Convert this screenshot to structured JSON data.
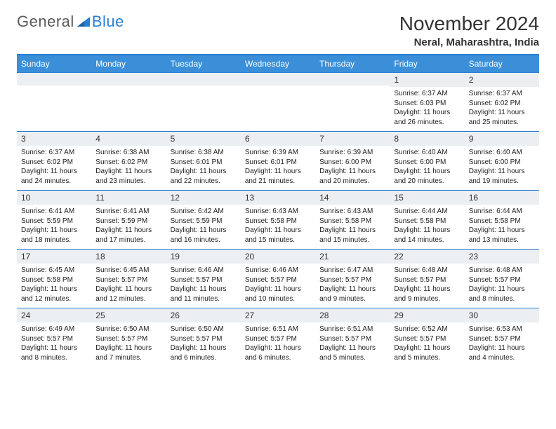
{
  "logo": {
    "general": "General",
    "blue": "Blue"
  },
  "title": "November 2024",
  "location": "Neral, Maharashtra, India",
  "colors": {
    "header_bg": "#3a8fd8",
    "border": "#2a7fd4",
    "daynum_bg": "#eceff1",
    "logo_gray": "#5a5a5a",
    "logo_blue": "#2a7fd4"
  },
  "days_of_week": [
    "Sunday",
    "Monday",
    "Tuesday",
    "Wednesday",
    "Thursday",
    "Friday",
    "Saturday"
  ],
  "weeks": [
    [
      {
        "n": "",
        "sr": "",
        "ss": "",
        "dl": ""
      },
      {
        "n": "",
        "sr": "",
        "ss": "",
        "dl": ""
      },
      {
        "n": "",
        "sr": "",
        "ss": "",
        "dl": ""
      },
      {
        "n": "",
        "sr": "",
        "ss": "",
        "dl": ""
      },
      {
        "n": "",
        "sr": "",
        "ss": "",
        "dl": ""
      },
      {
        "n": "1",
        "sr": "Sunrise: 6:37 AM",
        "ss": "Sunset: 6:03 PM",
        "dl": "Daylight: 11 hours and 26 minutes."
      },
      {
        "n": "2",
        "sr": "Sunrise: 6:37 AM",
        "ss": "Sunset: 6:02 PM",
        "dl": "Daylight: 11 hours and 25 minutes."
      }
    ],
    [
      {
        "n": "3",
        "sr": "Sunrise: 6:37 AM",
        "ss": "Sunset: 6:02 PM",
        "dl": "Daylight: 11 hours and 24 minutes."
      },
      {
        "n": "4",
        "sr": "Sunrise: 6:38 AM",
        "ss": "Sunset: 6:02 PM",
        "dl": "Daylight: 11 hours and 23 minutes."
      },
      {
        "n": "5",
        "sr": "Sunrise: 6:38 AM",
        "ss": "Sunset: 6:01 PM",
        "dl": "Daylight: 11 hours and 22 minutes."
      },
      {
        "n": "6",
        "sr": "Sunrise: 6:39 AM",
        "ss": "Sunset: 6:01 PM",
        "dl": "Daylight: 11 hours and 21 minutes."
      },
      {
        "n": "7",
        "sr": "Sunrise: 6:39 AM",
        "ss": "Sunset: 6:00 PM",
        "dl": "Daylight: 11 hours and 20 minutes."
      },
      {
        "n": "8",
        "sr": "Sunrise: 6:40 AM",
        "ss": "Sunset: 6:00 PM",
        "dl": "Daylight: 11 hours and 20 minutes."
      },
      {
        "n": "9",
        "sr": "Sunrise: 6:40 AM",
        "ss": "Sunset: 6:00 PM",
        "dl": "Daylight: 11 hours and 19 minutes."
      }
    ],
    [
      {
        "n": "10",
        "sr": "Sunrise: 6:41 AM",
        "ss": "Sunset: 5:59 PM",
        "dl": "Daylight: 11 hours and 18 minutes."
      },
      {
        "n": "11",
        "sr": "Sunrise: 6:41 AM",
        "ss": "Sunset: 5:59 PM",
        "dl": "Daylight: 11 hours and 17 minutes."
      },
      {
        "n": "12",
        "sr": "Sunrise: 6:42 AM",
        "ss": "Sunset: 5:59 PM",
        "dl": "Daylight: 11 hours and 16 minutes."
      },
      {
        "n": "13",
        "sr": "Sunrise: 6:43 AM",
        "ss": "Sunset: 5:58 PM",
        "dl": "Daylight: 11 hours and 15 minutes."
      },
      {
        "n": "14",
        "sr": "Sunrise: 6:43 AM",
        "ss": "Sunset: 5:58 PM",
        "dl": "Daylight: 11 hours and 15 minutes."
      },
      {
        "n": "15",
        "sr": "Sunrise: 6:44 AM",
        "ss": "Sunset: 5:58 PM",
        "dl": "Daylight: 11 hours and 14 minutes."
      },
      {
        "n": "16",
        "sr": "Sunrise: 6:44 AM",
        "ss": "Sunset: 5:58 PM",
        "dl": "Daylight: 11 hours and 13 minutes."
      }
    ],
    [
      {
        "n": "17",
        "sr": "Sunrise: 6:45 AM",
        "ss": "Sunset: 5:58 PM",
        "dl": "Daylight: 11 hours and 12 minutes."
      },
      {
        "n": "18",
        "sr": "Sunrise: 6:45 AM",
        "ss": "Sunset: 5:57 PM",
        "dl": "Daylight: 11 hours and 12 minutes."
      },
      {
        "n": "19",
        "sr": "Sunrise: 6:46 AM",
        "ss": "Sunset: 5:57 PM",
        "dl": "Daylight: 11 hours and 11 minutes."
      },
      {
        "n": "20",
        "sr": "Sunrise: 6:46 AM",
        "ss": "Sunset: 5:57 PM",
        "dl": "Daylight: 11 hours and 10 minutes."
      },
      {
        "n": "21",
        "sr": "Sunrise: 6:47 AM",
        "ss": "Sunset: 5:57 PM",
        "dl": "Daylight: 11 hours and 9 minutes."
      },
      {
        "n": "22",
        "sr": "Sunrise: 6:48 AM",
        "ss": "Sunset: 5:57 PM",
        "dl": "Daylight: 11 hours and 9 minutes."
      },
      {
        "n": "23",
        "sr": "Sunrise: 6:48 AM",
        "ss": "Sunset: 5:57 PM",
        "dl": "Daylight: 11 hours and 8 minutes."
      }
    ],
    [
      {
        "n": "24",
        "sr": "Sunrise: 6:49 AM",
        "ss": "Sunset: 5:57 PM",
        "dl": "Daylight: 11 hours and 8 minutes."
      },
      {
        "n": "25",
        "sr": "Sunrise: 6:50 AM",
        "ss": "Sunset: 5:57 PM",
        "dl": "Daylight: 11 hours and 7 minutes."
      },
      {
        "n": "26",
        "sr": "Sunrise: 6:50 AM",
        "ss": "Sunset: 5:57 PM",
        "dl": "Daylight: 11 hours and 6 minutes."
      },
      {
        "n": "27",
        "sr": "Sunrise: 6:51 AM",
        "ss": "Sunset: 5:57 PM",
        "dl": "Daylight: 11 hours and 6 minutes."
      },
      {
        "n": "28",
        "sr": "Sunrise: 6:51 AM",
        "ss": "Sunset: 5:57 PM",
        "dl": "Daylight: 11 hours and 5 minutes."
      },
      {
        "n": "29",
        "sr": "Sunrise: 6:52 AM",
        "ss": "Sunset: 5:57 PM",
        "dl": "Daylight: 11 hours and 5 minutes."
      },
      {
        "n": "30",
        "sr": "Sunrise: 6:53 AM",
        "ss": "Sunset: 5:57 PM",
        "dl": "Daylight: 11 hours and 4 minutes."
      }
    ]
  ]
}
